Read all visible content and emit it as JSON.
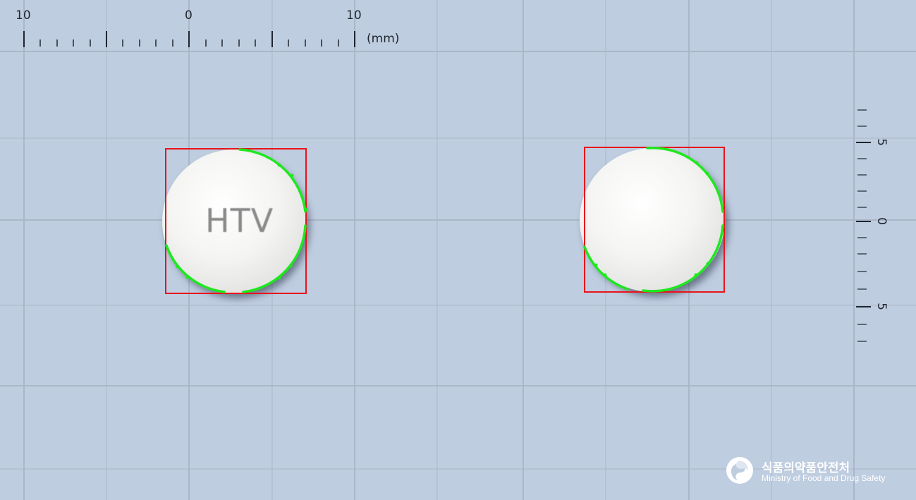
{
  "top_ruler": {
    "labels": [
      "10",
      "0",
      "10"
    ],
    "unit": "(mm)"
  },
  "side_ruler": {
    "labels": [
      "5",
      "0",
      "5"
    ]
  },
  "pills": [
    {
      "name": "pill-front",
      "imprint": "HTV",
      "color": "#f4f4f2"
    },
    {
      "name": "pill-back",
      "imprint": "",
      "color": "#f4f4f2"
    }
  ],
  "colors": {
    "background": "#bfcde0",
    "grid_line": "#a9b6c7",
    "bounding_box": "#e8141b",
    "contour": "#1ee81e"
  },
  "logo": {
    "korean": "식품의약품안전처",
    "english": "Ministry of Food and Drug Safety",
    "icon": "mfds-emblem-icon"
  }
}
